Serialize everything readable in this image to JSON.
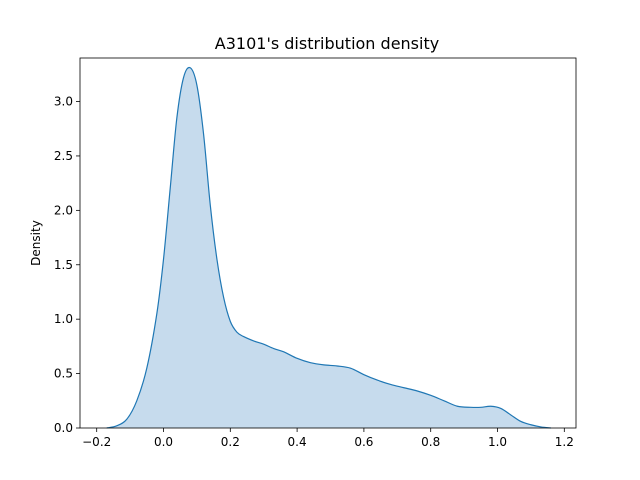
{
  "chart_data": {
    "type": "area",
    "title": "A3101's distribution density",
    "xlabel": "",
    "ylabel": "Density",
    "xlim": [
      -0.25,
      1.235
    ],
    "ylim": [
      0,
      3.4
    ],
    "grid": false,
    "legend": "none",
    "x_ticks": [
      -0.2,
      0.0,
      0.2,
      0.4,
      0.6,
      0.8,
      1.0,
      1.2
    ],
    "x_tick_labels": [
      "−0.2",
      "0.0",
      "0.2",
      "0.4",
      "0.6",
      "0.8",
      "1.0",
      "1.2"
    ],
    "y_ticks": [
      0.0,
      0.5,
      1.0,
      1.5,
      2.0,
      2.5,
      3.0
    ],
    "y_tick_labels": [
      "0.0",
      "0.5",
      "1.0",
      "1.5",
      "2.0",
      "2.5",
      "3.0"
    ],
    "colors": {
      "line": "#1f77b4",
      "fill": "#c6dbed"
    },
    "series": [
      {
        "x": [
          -0.17,
          -0.14,
          -0.11,
          -0.08,
          -0.05,
          -0.02,
          0.0,
          0.02,
          0.04,
          0.06,
          0.08,
          0.1,
          0.12,
          0.14,
          0.16,
          0.18,
          0.2,
          0.22,
          0.24,
          0.27,
          0.3,
          0.33,
          0.36,
          0.4,
          0.44,
          0.48,
          0.52,
          0.56,
          0.6,
          0.64,
          0.68,
          0.72,
          0.76,
          0.8,
          0.84,
          0.88,
          0.92,
          0.95,
          0.98,
          1.01,
          1.04,
          1.07,
          1.1,
          1.13,
          1.16
        ],
        "y": [
          0.0,
          0.02,
          0.08,
          0.25,
          0.55,
          1.05,
          1.55,
          2.2,
          2.85,
          3.22,
          3.31,
          3.15,
          2.7,
          2.05,
          1.55,
          1.2,
          0.98,
          0.88,
          0.84,
          0.8,
          0.77,
          0.73,
          0.7,
          0.64,
          0.6,
          0.58,
          0.57,
          0.55,
          0.49,
          0.44,
          0.4,
          0.37,
          0.34,
          0.3,
          0.25,
          0.2,
          0.19,
          0.19,
          0.2,
          0.18,
          0.12,
          0.06,
          0.03,
          0.01,
          0.0
        ]
      }
    ]
  }
}
